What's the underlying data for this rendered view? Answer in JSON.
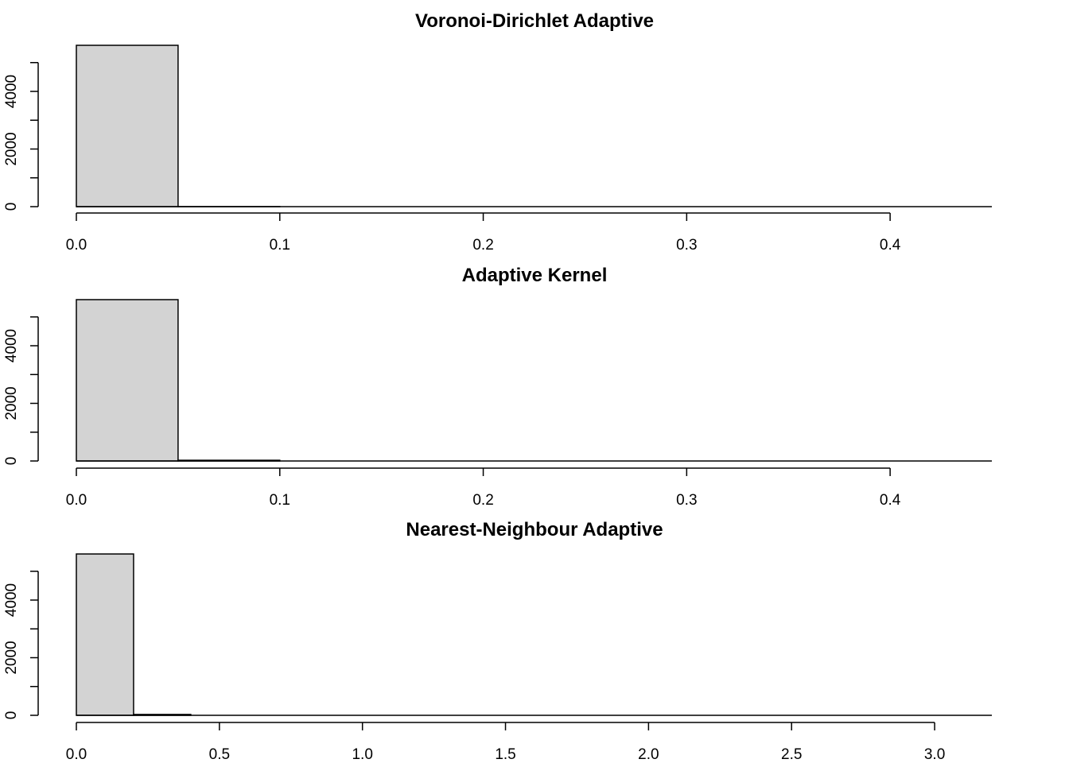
{
  "chart_data": [
    {
      "type": "bar",
      "title": "Voronoi-Dirichlet Adaptive",
      "xlabel": "",
      "ylabel": "",
      "bins": [
        {
          "start": 0.0,
          "end": 0.05,
          "count": 5600
        },
        {
          "start": 0.05,
          "end": 0.1,
          "count": 2
        },
        {
          "start": 0.1,
          "end": 0.45,
          "count": 0
        }
      ],
      "xlim": [
        0.0,
        0.45
      ],
      "ylim": [
        0,
        5600
      ],
      "xticks": [
        0.0,
        0.1,
        0.2,
        0.3,
        0.4
      ],
      "xtick_labels": [
        "0.0",
        "0.1",
        "0.2",
        "0.3",
        "0.4"
      ],
      "yticks": [
        0,
        1000,
        2000,
        3000,
        4000,
        5000
      ],
      "ytick_labels": [
        "0",
        "",
        "2000",
        "",
        "4000",
        ""
      ],
      "grid": false
    },
    {
      "type": "bar",
      "title": "Adaptive Kernel",
      "xlabel": "",
      "ylabel": "",
      "bins": [
        {
          "start": 0.0,
          "end": 0.05,
          "count": 5600
        },
        {
          "start": 0.05,
          "end": 0.1,
          "count": 25
        },
        {
          "start": 0.1,
          "end": 0.45,
          "count": 0
        }
      ],
      "xlim": [
        0.0,
        0.45
      ],
      "ylim": [
        0,
        5600
      ],
      "xticks": [
        0.0,
        0.1,
        0.2,
        0.3,
        0.4
      ],
      "xtick_labels": [
        "0.0",
        "0.1",
        "0.2",
        "0.3",
        "0.4"
      ],
      "yticks": [
        0,
        1000,
        2000,
        3000,
        4000,
        5000
      ],
      "ytick_labels": [
        "0",
        "",
        "2000",
        "",
        "4000",
        ""
      ],
      "grid": false
    },
    {
      "type": "bar",
      "title": "Nearest-Neighbour Adaptive",
      "xlabel": "",
      "ylabel": "",
      "bins": [
        {
          "start": 0.0,
          "end": 0.2,
          "count": 5600
        },
        {
          "start": 0.2,
          "end": 0.4,
          "count": 30
        },
        {
          "start": 0.4,
          "end": 3.2,
          "count": 0
        }
      ],
      "xlim": [
        0.0,
        3.2
      ],
      "ylim": [
        0,
        5600
      ],
      "xticks": [
        0.0,
        0.5,
        1.0,
        1.5,
        2.0,
        2.5,
        3.0
      ],
      "xtick_labels": [
        "0.0",
        "0.5",
        "1.0",
        "1.5",
        "2.0",
        "2.5",
        "3.0"
      ],
      "yticks": [
        0,
        1000,
        2000,
        3000,
        4000,
        5000
      ],
      "ytick_labels": [
        "0",
        "",
        "2000",
        "",
        "4000",
        ""
      ],
      "grid": false
    }
  ]
}
